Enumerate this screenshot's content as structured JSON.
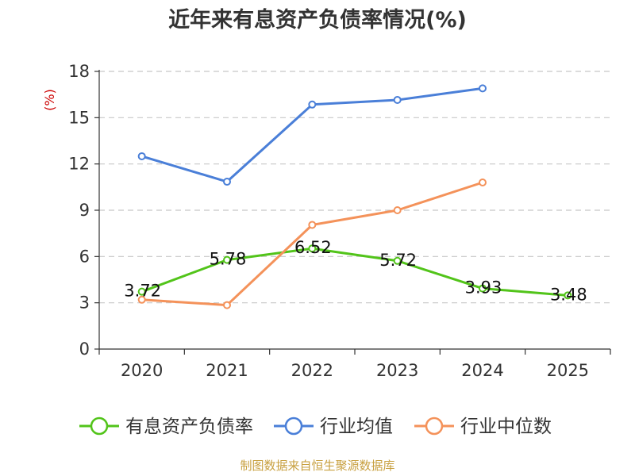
{
  "chart_data": {
    "type": "line",
    "title": "近年来有息资产负债率情况(%)",
    "ylabel": "(%)",
    "categories": [
      "2020",
      "2021",
      "2022",
      "2023",
      "2024",
      "2025"
    ],
    "ylim": [
      0,
      18
    ],
    "yticks": [
      0,
      3,
      6,
      9,
      12,
      15,
      18
    ],
    "grid": true,
    "legend_position": "bottom",
    "series": [
      {
        "name": "有息资产负债率",
        "color": "#52c41a",
        "values": [
          3.72,
          5.78,
          6.52,
          5.72,
          3.93,
          3.48
        ],
        "data_labels": [
          "3.72",
          "5.78",
          "6.52",
          "5.72",
          "3.93",
          "3.48"
        ]
      },
      {
        "name": "行业均值",
        "color": "#4a7fd8",
        "values": [
          12.5,
          10.85,
          15.85,
          16.15,
          16.9,
          null
        ]
      },
      {
        "name": "行业中位数",
        "color": "#f4925a",
        "values": [
          3.2,
          2.85,
          8.05,
          9.0,
          10.8,
          null
        ]
      }
    ],
    "source": "制图数据来自恒生聚源数据库"
  }
}
